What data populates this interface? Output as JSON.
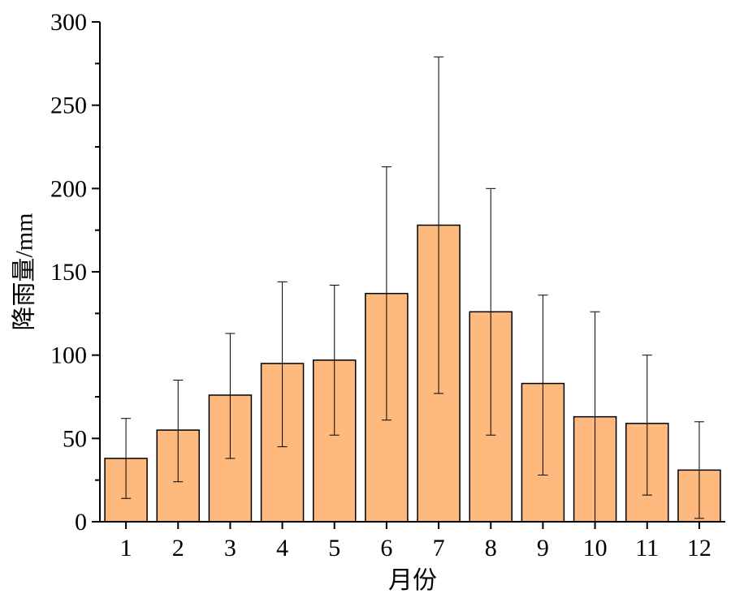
{
  "chart_data": {
    "type": "bar",
    "title": "",
    "xlabel": "月份",
    "ylabel": "降雨量/mm",
    "categories": [
      "1",
      "2",
      "3",
      "4",
      "5",
      "6",
      "7",
      "8",
      "9",
      "10",
      "11",
      "12"
    ],
    "values": [
      38,
      55,
      76,
      95,
      97,
      137,
      178,
      126,
      83,
      63,
      59,
      31
    ],
    "error_bars": {
      "lower": [
        14,
        24,
        38,
        45,
        52,
        61,
        77,
        52,
        28,
        0,
        16,
        2
      ],
      "upper": [
        62,
        85,
        113,
        144,
        142,
        213,
        279,
        200,
        136,
        126,
        100,
        60
      ]
    },
    "ylim": [
      0,
      300
    ],
    "yticks": [
      0,
      50,
      100,
      150,
      200,
      250,
      300
    ],
    "grid": false,
    "legend": "none",
    "colors": {
      "bar_fill": "#fdb97e",
      "bar_stroke": "#000000",
      "axis": "#000000",
      "error_bar": "#000000"
    }
  }
}
